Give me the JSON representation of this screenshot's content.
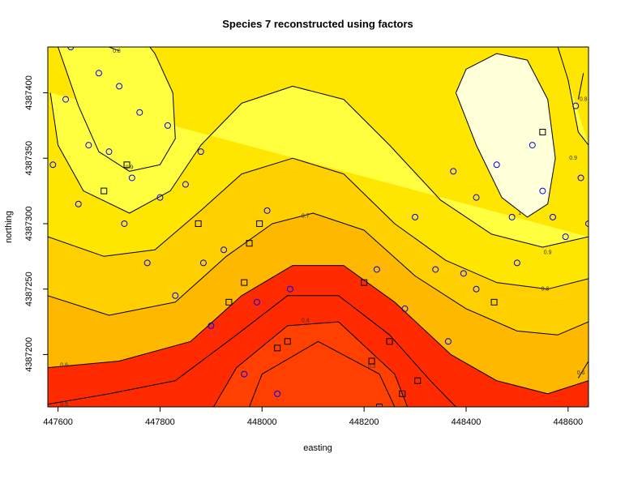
{
  "chart_data": {
    "type": "heatmap",
    "title": "Species 7 reconstructed using factors",
    "xlabel": "easting",
    "ylabel": "northing",
    "xlim": [
      447580,
      448640
    ],
    "ylim": [
      4387160,
      4387435
    ],
    "xticks": [
      {
        "value": 447600,
        "label": "447600"
      },
      {
        "value": 447800,
        "label": "447800"
      },
      {
        "value": 448000,
        "label": "448000"
      },
      {
        "value": 448200,
        "label": "448200"
      },
      {
        "value": 448400,
        "label": "448400"
      },
      {
        "value": 448600,
        "label": "448600"
      }
    ],
    "yticks": [
      {
        "value": 4387200,
        "label": "4387200"
      },
      {
        "value": 4387250,
        "label": "4387250"
      },
      {
        "value": 4387300,
        "label": "4387300"
      },
      {
        "value": 4387350,
        "label": "4387350"
      },
      {
        "value": 4387400,
        "label": "4387400"
      }
    ],
    "colors": {
      "low": "#ff0000",
      "mid": "#ffa500",
      "high": "#ffff00",
      "top": "#ffffe0",
      "contour": "#000000",
      "circle_marker": "#0000ff",
      "square_marker": "#000000"
    },
    "contours": [
      {
        "level": 0.3,
        "label": "0.3",
        "points": [
          [
            447975,
            4387160
          ],
          [
            448000,
            4387185
          ],
          [
            448110,
            4387210
          ],
          [
            448230,
            4387185
          ],
          [
            448260,
            4387160
          ]
        ],
        "label_at": [
          448215,
          4387191
        ]
      },
      {
        "level": 0.4,
        "label": "0.4",
        "points": [
          [
            447905,
            4387160
          ],
          [
            447950,
            4387190
          ],
          [
            448050,
            4387222
          ],
          [
            448150,
            4387225
          ],
          [
            448260,
            4387185
          ],
          [
            448285,
            4387160
          ]
        ],
        "label_at": [
          448085,
          4387226
        ]
      },
      {
        "level": 0.5,
        "label": "0.5",
        "points": [
          [
            447580,
            4387162
          ],
          [
            447700,
            4387170
          ],
          [
            447830,
            4387180
          ],
          [
            447950,
            4387215
          ],
          [
            448050,
            4387245
          ],
          [
            448150,
            4387245
          ],
          [
            448250,
            4387215
          ],
          [
            448330,
            4387180
          ],
          [
            448380,
            4387160
          ]
        ],
        "label_at": [
          447612,
          4387162
        ]
      },
      {
        "level": 0.6,
        "label": "0.6",
        "points": [
          [
            447580,
            4387190
          ],
          [
            447720,
            4387195
          ],
          [
            447860,
            4387210
          ],
          [
            447960,
            4387245
          ],
          [
            448060,
            4387268
          ],
          [
            448160,
            4387268
          ],
          [
            448260,
            4387240
          ],
          [
            448370,
            4387200
          ],
          [
            448460,
            4387180
          ],
          [
            448560,
            4387170
          ],
          [
            448640,
            4387180
          ]
        ],
        "label_at": [
          447612,
          4387192
        ]
      },
      {
        "level": 0.7,
        "label": "0.7",
        "points": [
          [
            447580,
            4387245
          ],
          [
            447700,
            4387230
          ],
          [
            447830,
            4387240
          ],
          [
            447930,
            4387275
          ],
          [
            448020,
            4387300
          ],
          [
            448100,
            4387308
          ],
          [
            448200,
            4387295
          ],
          [
            448300,
            4387260
          ],
          [
            448400,
            4387235
          ],
          [
            448500,
            4387218
          ],
          [
            448580,
            4387215
          ],
          [
            448640,
            4387225
          ]
        ],
        "label_at": [
          448085,
          4387306
        ]
      },
      {
        "level": 0.8,
        "label": "0.8",
        "points": [
          [
            447580,
            4387290
          ],
          [
            447690,
            4387275
          ],
          [
            447790,
            4387280
          ],
          [
            447880,
            4387310
          ],
          [
            447960,
            4387338
          ],
          [
            448060,
            4387350
          ],
          [
            448160,
            4387338
          ],
          [
            448260,
            4387300
          ],
          [
            448360,
            4387272
          ],
          [
            448460,
            4387255
          ],
          [
            448560,
            4387250
          ],
          [
            448640,
            4387258
          ]
        ],
        "label_at": [
          448555,
          4387250
        ]
      },
      {
        "level": 0.9,
        "label": "0.9",
        "points": [
          [
            447585,
            4387400
          ],
          [
            447600,
            4387360
          ],
          [
            447650,
            4387325
          ],
          [
            447740,
            4387308
          ],
          [
            447820,
            4387325
          ],
          [
            447880,
            4387360
          ],
          [
            447960,
            4387392
          ],
          [
            448060,
            4387405
          ],
          [
            448160,
            4387395
          ],
          [
            448250,
            4387360
          ],
          [
            448350,
            4387318
          ],
          [
            448450,
            4387292
          ],
          [
            448550,
            4387282
          ],
          [
            448640,
            4387290
          ]
        ],
        "label_at": [
          448560,
          4387278
        ]
      },
      {
        "level": 0.9,
        "label": "0.9",
        "points": [
          [
            447600,
            4387435
          ],
          [
            447640,
            4387390
          ],
          [
            447680,
            4387355
          ],
          [
            447740,
            4387340
          ],
          [
            447800,
            4387345
          ],
          [
            447830,
            4387365
          ],
          [
            447825,
            4387400
          ],
          [
            447790,
            4387430
          ],
          [
            447780,
            4387435
          ]
        ],
        "label_at": [
          447740,
          4387343
        ]
      },
      {
        "level": 0.9,
        "label": "0.9",
        "points": [
          [
            448580,
            4387435
          ],
          [
            448600,
            4387410
          ],
          [
            448620,
            4387370
          ],
          [
            448640,
            4387360
          ]
        ],
        "label_at": [
          448610,
          4387350
        ]
      },
      {
        "level": 1.0,
        "label": "1",
        "points": [
          [
            448380,
            4387400
          ],
          [
            448420,
            4387360
          ],
          [
            448470,
            4387320
          ],
          [
            448520,
            4387305
          ],
          [
            448560,
            4387315
          ],
          [
            448575,
            4387350
          ],
          [
            448560,
            4387395
          ],
          [
            448520,
            4387425
          ],
          [
            448460,
            4387430
          ],
          [
            448400,
            4387418
          ],
          [
            448380,
            4387400
          ]
        ],
        "label_at": [
          448505,
          4387308
        ]
      },
      {
        "level": 0.8,
        "label": "0.8",
        "points": [
          [
            447700,
            4387435
          ],
          [
            447720,
            4387432
          ]
        ],
        "label_at": [
          447715,
          4387432
        ]
      },
      {
        "level": 0.8,
        "label": "0.8",
        "points": [
          [
            448630,
            4387415
          ],
          [
            448620,
            4387395
          ]
        ],
        "label_at": [
          448630,
          4387395
        ]
      },
      {
        "level": 0.6,
        "label": "0.6",
        "points": [
          [
            448640,
            4387195
          ],
          [
            448620,
            4387182
          ]
        ],
        "label_at": [
          448625,
          4387186
        ]
      }
    ],
    "circles": [
      [
        447590,
        4387345
      ],
      [
        447615,
        4387395
      ],
      [
        447625,
        4387435
      ],
      [
        447640,
        4387315
      ],
      [
        447660,
        4387360
      ],
      [
        447680,
        4387415
      ],
      [
        447700,
        4387355
      ],
      [
        447720,
        4387405
      ],
      [
        447730,
        4387300
      ],
      [
        447745,
        4387335
      ],
      [
        447760,
        4387385
      ],
      [
        447775,
        4387270
      ],
      [
        447800,
        4387320
      ],
      [
        447815,
        4387375
      ],
      [
        447830,
        4387245
      ],
      [
        447850,
        4387330
      ],
      [
        447880,
        4387355
      ],
      [
        447885,
        4387270
      ],
      [
        447900,
        4387222
      ],
      [
        447925,
        4387280
      ],
      [
        447965,
        4387185
      ],
      [
        447990,
        4387240
      ],
      [
        448010,
        4387310
      ],
      [
        448030,
        4387170
      ],
      [
        448055,
        4387250
      ],
      [
        448225,
        4387265
      ],
      [
        448280,
        4387235
      ],
      [
        448300,
        4387305
      ],
      [
        448340,
        4387265
      ],
      [
        448365,
        4387210
      ],
      [
        448375,
        4387340
      ],
      [
        448395,
        4387262
      ],
      [
        448420,
        4387250
      ],
      [
        448420,
        4387320
      ],
      [
        448460,
        4387345
      ],
      [
        448490,
        4387305
      ],
      [
        448500,
        4387270
      ],
      [
        448530,
        4387360
      ],
      [
        448550,
        4387325
      ],
      [
        448570,
        4387305
      ],
      [
        448595,
        4387290
      ],
      [
        448615,
        4387390
      ],
      [
        448625,
        4387335
      ],
      [
        448640,
        4387300
      ]
    ],
    "squares": [
      [
        447690,
        4387325
      ],
      [
        447735,
        4387345
      ],
      [
        447875,
        4387300
      ],
      [
        447935,
        4387240
      ],
      [
        447965,
        4387255
      ],
      [
        447975,
        4387285
      ],
      [
        447995,
        4387300
      ],
      [
        448030,
        4387205
      ],
      [
        448050,
        4387210
      ],
      [
        448200,
        4387255
      ],
      [
        448215,
        4387195
      ],
      [
        448250,
        4387210
      ],
      [
        448275,
        4387170
      ],
      [
        448305,
        4387180
      ],
      [
        448230,
        4387160
      ],
      [
        448455,
        4387240
      ],
      [
        448550,
        4387370
      ]
    ]
  }
}
